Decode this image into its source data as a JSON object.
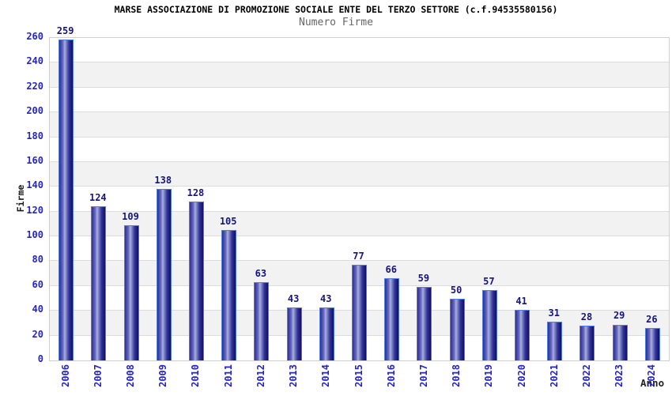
{
  "chart_data": {
    "type": "bar",
    "title": "MARSE ASSOCIAZIONE DI PROMOZIONE SOCIALE ENTE DEL TERZO SETTORE (c.f.94535580156)",
    "subtitle": "Numero Firme",
    "xlabel": "Anno",
    "ylabel": "Firme",
    "categories": [
      "2006",
      "2007",
      "2008",
      "2009",
      "2010",
      "2011",
      "2012",
      "2013",
      "2014",
      "2015",
      "2016",
      "2017",
      "2018",
      "2019",
      "2020",
      "2021",
      "2022",
      "2023",
      "2024"
    ],
    "values": [
      259,
      124,
      109,
      138,
      128,
      105,
      63,
      43,
      43,
      77,
      66,
      59,
      50,
      57,
      41,
      31,
      28,
      29,
      26
    ],
    "ylim": [
      0,
      260
    ],
    "ytick_step": 20,
    "yticks": [
      0,
      20,
      40,
      60,
      80,
      100,
      120,
      140,
      160,
      180,
      200,
      220,
      240,
      260
    ],
    "grid": "horizontal-bands",
    "legend": "none",
    "colors": {
      "axis_text": "#2424cc",
      "value_label": "#15157d",
      "title_text": "#000000",
      "subtitle_text": "#666666",
      "band_gray": "#f2f2f2",
      "band_white": "#ffffff",
      "gridline": "#dcdcdc",
      "plot_border": "#cfcfcf",
      "bar_border": "#4f7de8",
      "bar_gradient": [
        "#2e2e96",
        "#6a6fbe",
        "#aab0de",
        "#7075c2",
        "#34349a",
        "#101060"
      ]
    }
  }
}
